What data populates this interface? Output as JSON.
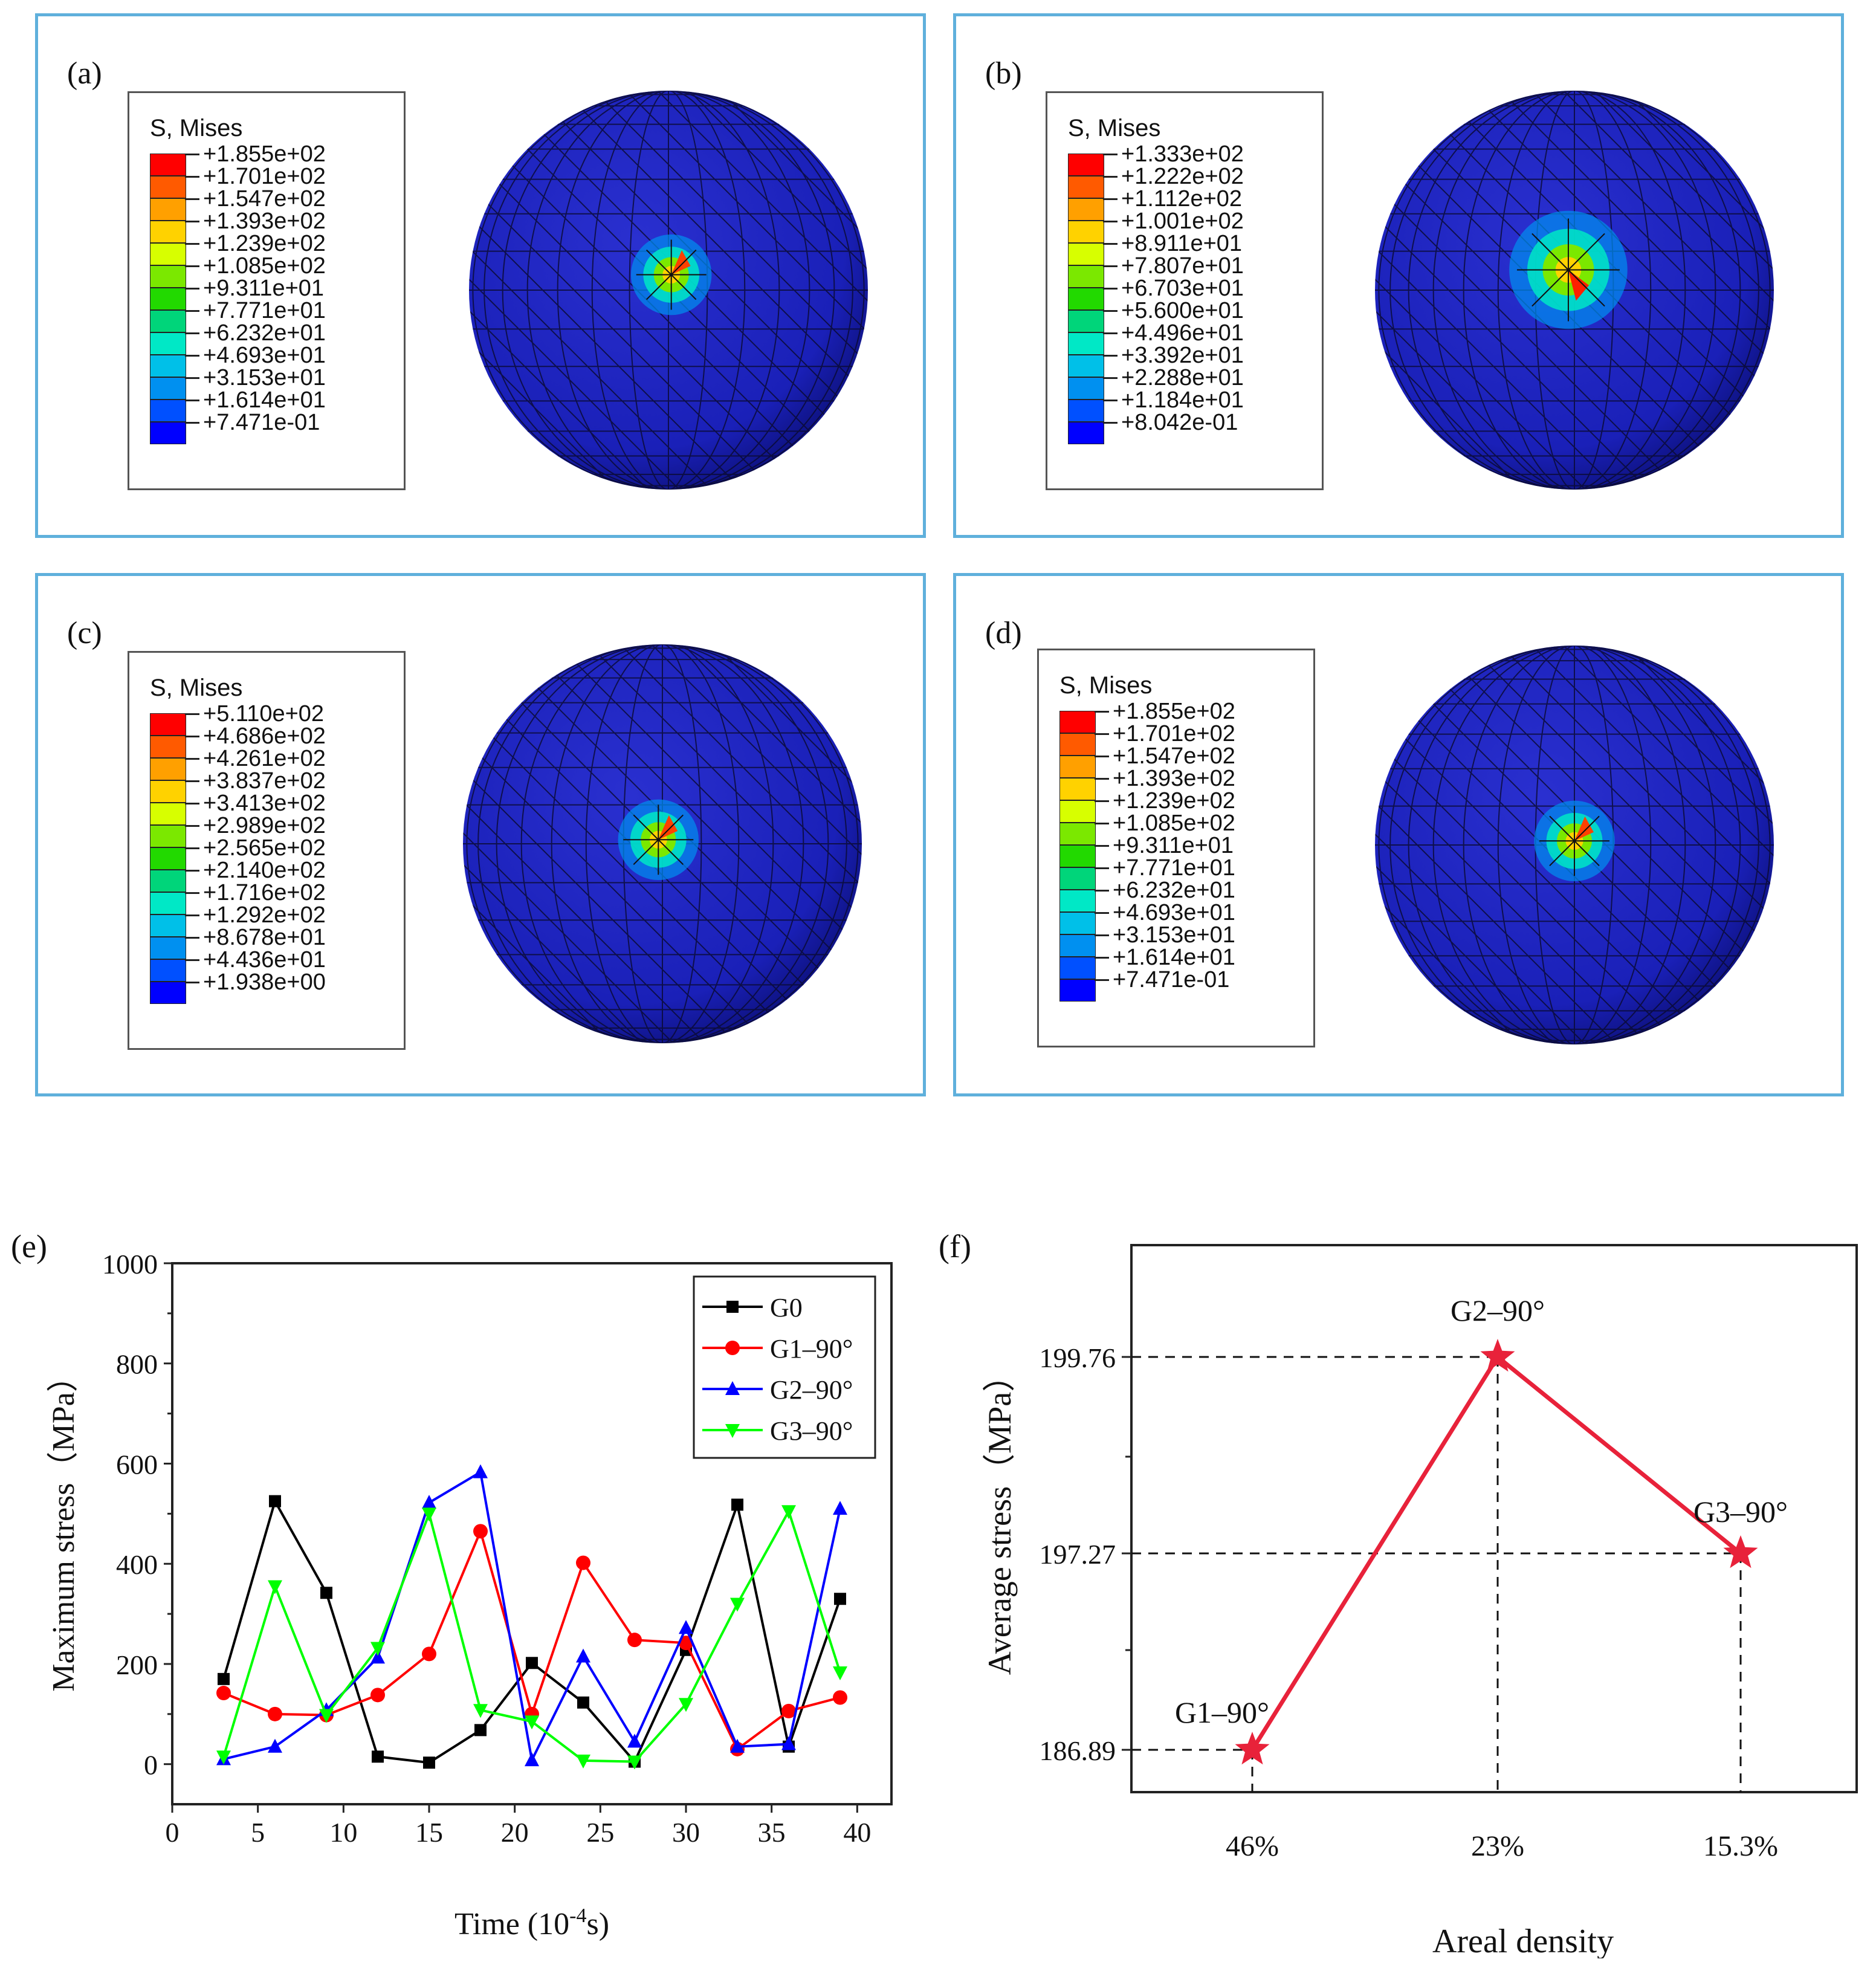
{
  "contour_panels": [
    {
      "label": "(a)",
      "legend_title": "S, Mises",
      "levels": [
        "+1.855e+02",
        "+1.701e+02",
        "+1.547e+02",
        "+1.393e+02",
        "+1.239e+02",
        "+1.085e+02",
        "+9.311e+01",
        "+7.771e+01",
        "+6.232e+01",
        "+4.693e+01",
        "+3.153e+01",
        "+1.614e+01",
        "+7.471e-01"
      ]
    },
    {
      "label": "(b)",
      "legend_title": "S, Mises",
      "levels": [
        "+1.333e+02",
        "+1.222e+02",
        "+1.112e+02",
        "+1.001e+02",
        "+8.911e+01",
        "+7.807e+01",
        "+6.703e+01",
        "+5.600e+01",
        "+4.496e+01",
        "+3.392e+01",
        "+2.288e+01",
        "+1.184e+01",
        "+8.042e-01"
      ]
    },
    {
      "label": "(c)",
      "legend_title": "S, Mises",
      "levels": [
        "+5.110e+02",
        "+4.686e+02",
        "+4.261e+02",
        "+3.837e+02",
        "+3.413e+02",
        "+2.989e+02",
        "+2.565e+02",
        "+2.140e+02",
        "+1.716e+02",
        "+1.292e+02",
        "+8.678e+01",
        "+4.436e+01",
        "+1.938e+00"
      ]
    },
    {
      "label": "(d)",
      "legend_title": "S, Mises",
      "levels": [
        "+1.855e+02",
        "+1.701e+02",
        "+1.547e+02",
        "+1.393e+02",
        "+1.239e+02",
        "+1.085e+02",
        "+9.311e+01",
        "+7.771e+01",
        "+6.232e+01",
        "+4.693e+01",
        "+3.153e+01",
        "+1.614e+01",
        "+7.471e-01"
      ]
    }
  ],
  "contour_colors": [
    "#ff0000",
    "#ff5a00",
    "#ffa000",
    "#ffd200",
    "#d7ff00",
    "#7be800",
    "#22d900",
    "#00d57a",
    "#00e8c6",
    "#00c0e8",
    "#0090f0",
    "#0050ff",
    "#0000ff"
  ],
  "sphere_color": "#1a20b8",
  "chart_data": [
    {
      "type": "line",
      "panel_label": "(e)",
      "xlabel": "Time (10",
      "xlabel_sup": "-4",
      "xlabel_end": "s)",
      "ylabel": "Maximum stress（MPa）",
      "xlim": [
        0,
        42
      ],
      "ylim": [
        -80,
        1000
      ],
      "xticks": [
        "0",
        "5",
        "10",
        "15",
        "20",
        "25",
        "30",
        "35",
        "40"
      ],
      "yticks": [
        "0",
        "200",
        "400",
        "600",
        "800",
        "1000"
      ],
      "x": [
        3,
        6,
        9,
        12,
        15,
        18,
        21,
        24,
        27,
        30,
        33,
        36,
        39
      ],
      "series": [
        {
          "name": "G0",
          "color": "#000000",
          "marker": "square",
          "values": [
            170,
            525,
            342,
            15,
            3,
            68,
            202,
            123,
            5,
            228,
            518,
            35,
            330
          ]
        },
        {
          "name": "G1–90°",
          "color": "#ff0000",
          "marker": "circle",
          "values": [
            142,
            100,
            98,
            138,
            220,
            465,
            100,
            402,
            248,
            242,
            30,
            106,
            133
          ]
        },
        {
          "name": "G2–90°",
          "color": "#0000ff",
          "marker": "triangle-up",
          "values": [
            10,
            35,
            108,
            213,
            522,
            583,
            8,
            215,
            45,
            272,
            35,
            40,
            510
          ]
        },
        {
          "name": "G3–90°",
          "color": "#00ff00",
          "marker": "triangle-down",
          "values": [
            15,
            355,
            98,
            232,
            500,
            108,
            85,
            7,
            5,
            120,
            320,
            505,
            183
          ]
        }
      ],
      "legend_position": "top-right"
    },
    {
      "type": "line",
      "panel_label": "(f)",
      "xlabel": "Areal density",
      "ylabel": "Average stress（MPa）",
      "categories": [
        "46%",
        "23%",
        "15.3%"
      ],
      "values": [
        186.89,
        199.76,
        197.27
      ],
      "point_labels": [
        "G1–90°",
        "G2–90°",
        "G3–90°"
      ],
      "yticks": [
        "186.89",
        "197.27",
        "199.76"
      ],
      "color": "#e8223a",
      "marker": "star"
    }
  ]
}
